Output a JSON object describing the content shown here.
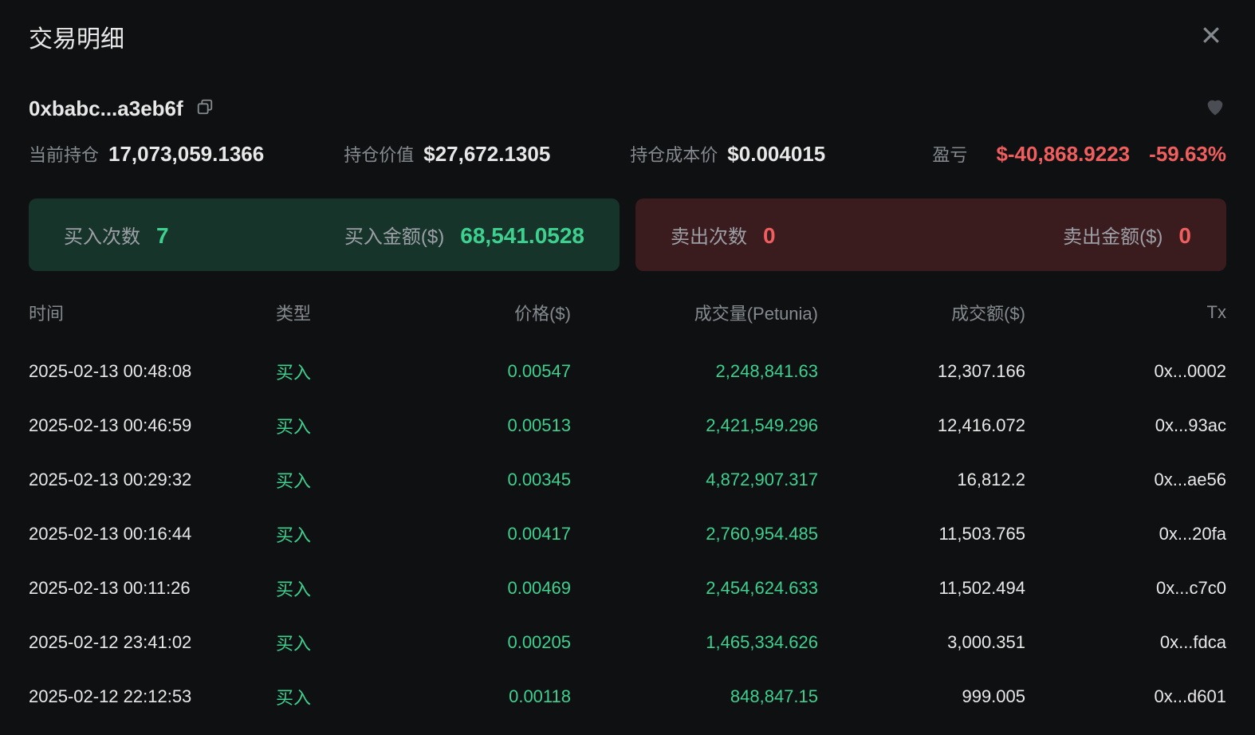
{
  "modal": {
    "title": "交易明细"
  },
  "wallet": {
    "address": "0xbabc...a3eb6f"
  },
  "stats": {
    "position_label": "当前持仓",
    "position_value": "17,073,059.1366",
    "value_label": "持仓价值",
    "value_value": "$27,672.1305",
    "cost_label": "持仓成本价",
    "cost_value": "$0.004015",
    "pl_label": "盈亏",
    "pl_value": "$-40,868.9223",
    "pl_pct": "-59.63%"
  },
  "summary": {
    "buy_count_label": "买入次数",
    "buy_count_value": "7",
    "buy_amount_label": "买入金额($)",
    "buy_amount_value": "68,541.0528",
    "sell_count_label": "卖出次数",
    "sell_count_value": "0",
    "sell_amount_label": "卖出金额($)",
    "sell_amount_value": "0"
  },
  "table": {
    "headers": {
      "time": "时间",
      "type": "类型",
      "price": "价格($)",
      "volume": "成交量(Petunia)",
      "amount": "成交额($)",
      "tx": "Tx"
    },
    "rows": [
      {
        "time": "2025-02-13 00:48:08",
        "type": "买入",
        "price": "0.00547",
        "volume": "2,248,841.63",
        "amount": "12,307.166",
        "tx": "0x...0002"
      },
      {
        "time": "2025-02-13 00:46:59",
        "type": "买入",
        "price": "0.00513",
        "volume": "2,421,549.296",
        "amount": "12,416.072",
        "tx": "0x...93ac"
      },
      {
        "time": "2025-02-13 00:29:32",
        "type": "买入",
        "price": "0.00345",
        "volume": "4,872,907.317",
        "amount": "16,812.2",
        "tx": "0x...ae56"
      },
      {
        "time": "2025-02-13 00:16:44",
        "type": "买入",
        "price": "0.00417",
        "volume": "2,760,954.485",
        "amount": "11,503.765",
        "tx": "0x...20fa"
      },
      {
        "time": "2025-02-13 00:11:26",
        "type": "买入",
        "price": "0.00469",
        "volume": "2,454,624.633",
        "amount": "11,502.494",
        "tx": "0x...c7c0"
      },
      {
        "time": "2025-02-12 23:41:02",
        "type": "买入",
        "price": "0.00205",
        "volume": "1,465,334.626",
        "amount": "3,000.351",
        "tx": "0x...fdca"
      },
      {
        "time": "2025-02-12 22:12:53",
        "type": "买入",
        "price": "0.00118",
        "volume": "848,847.15",
        "amount": "999.005",
        "tx": "0x...d601"
      }
    ]
  },
  "colors": {
    "background": "#0f1012",
    "text_primary": "#e8e8e8",
    "text_secondary": "#858a8f",
    "green": "#3dd08e",
    "red": "#f05e5e",
    "card_buy_bg": "rgba(40,120,90,0.35)",
    "card_sell_bg": "rgba(140,50,55,0.35)"
  }
}
